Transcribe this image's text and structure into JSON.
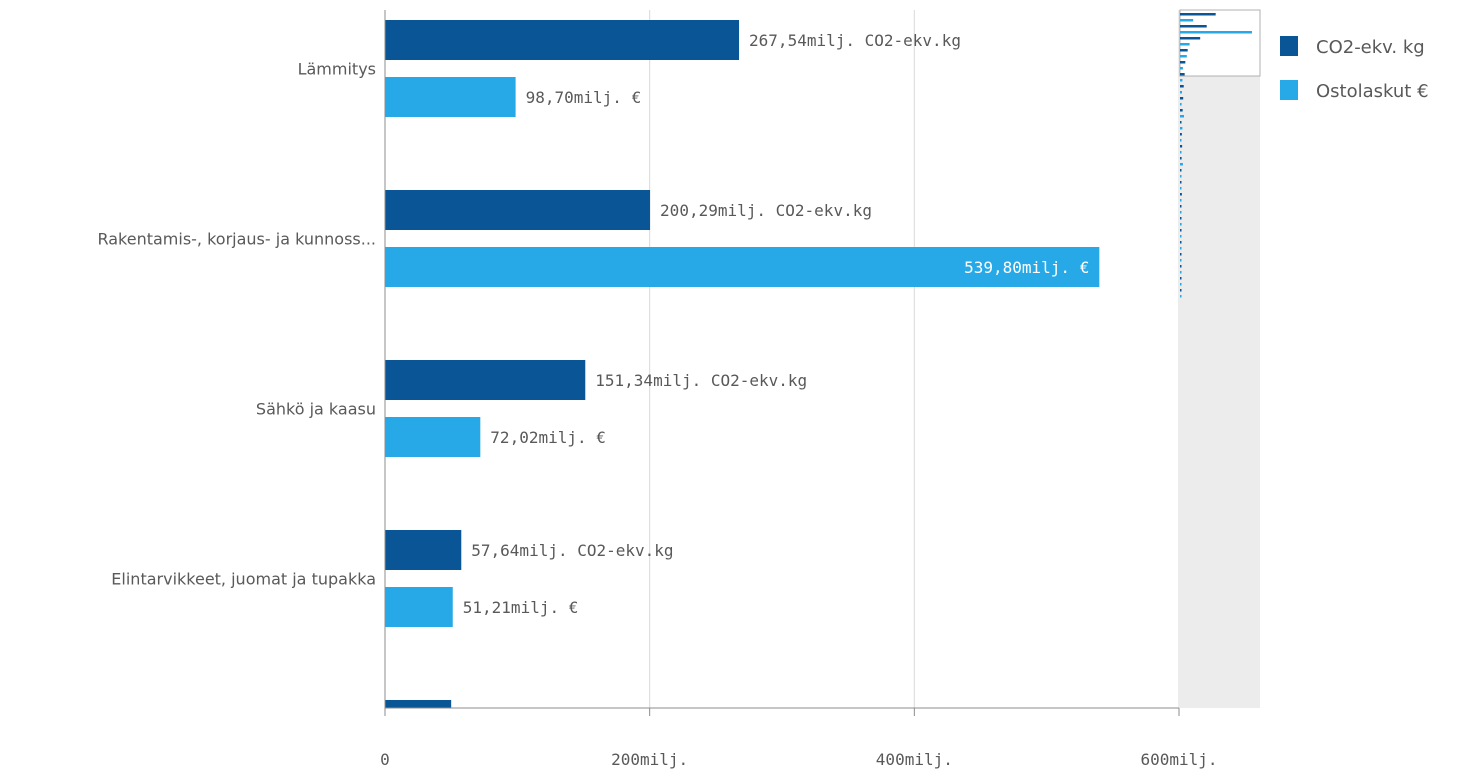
{
  "chart_data": {
    "type": "bar",
    "orientation": "horizontal",
    "categories": [
      "Lämmitys",
      "Rakentamis-, korjaus- ja kunnoss...",
      "Sähkö ja kaasu",
      "Elintarvikkeet, juomat ja tupakka"
    ],
    "series": [
      {
        "name": "CO2-ekv. kg",
        "color": "#0a5596",
        "values": [
          267.54,
          200.29,
          151.34,
          57.64
        ],
        "labels": [
          "267,54milj. CO2-ekv.kg",
          "200,29milj. CO2-ekv.kg",
          "151,34milj. CO2-ekv.kg",
          "57,64milj. CO2-ekv.kg"
        ]
      },
      {
        "name": "Ostolaskut €",
        "color": "#27a9e8",
        "values": [
          98.7,
          539.8,
          72.02,
          51.21
        ],
        "labels": [
          "98,70milj. €",
          "539,80milj. €",
          "72,02milj. €",
          "51,21milj. €"
        ]
      }
    ],
    "partial_next_bar": {
      "series": "CO2-ekv. kg",
      "value": 50
    },
    "x_ticks": [
      {
        "value": 0,
        "label": "0"
      },
      {
        "value": 200,
        "label": "200milj."
      },
      {
        "value": 400,
        "label": "400milj."
      },
      {
        "value": 600,
        "label": "600milj."
      }
    ],
    "xlim": [
      0,
      600
    ],
    "grid": true,
    "legend_position": "right",
    "title": "",
    "xlabel": "",
    "ylabel": ""
  }
}
